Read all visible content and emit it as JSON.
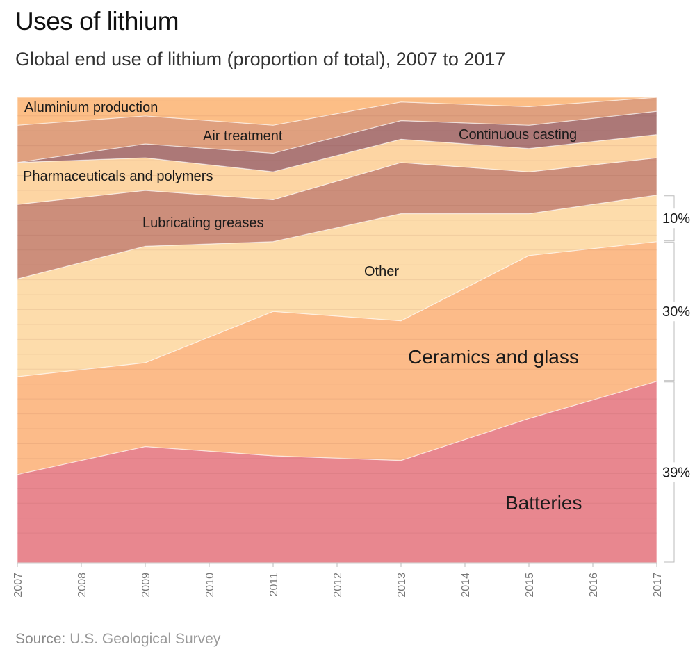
{
  "title": "Uses of lithium",
  "subtitle": "Global end use of lithium (proportion of total), 2007 to 2017",
  "source_label": "Source:",
  "source_text": "U.S. Geological Survey",
  "chart_data": {
    "type": "area",
    "stacked": true,
    "normalized": true,
    "title": "Uses of lithium",
    "subtitle": "Global end use of lithium (proportion of total), 2007 to 2017",
    "x": [
      2007,
      2009,
      2011,
      2013,
      2015,
      2017
    ],
    "x_ticks": [
      "2007",
      "2008",
      "2009",
      "2010",
      "2011",
      "2012",
      "2013",
      "2014",
      "2015",
      "2016",
      "2017"
    ],
    "ylim": [
      0,
      100
    ],
    "grid": true,
    "series": [
      {
        "name": "Batteries",
        "label": "Batteries",
        "color": "#e8878f",
        "values": [
          19,
          25,
          23,
          22,
          31,
          39
        ]
      },
      {
        "name": "Ceramics and glass",
        "label": "Ceramics and glass",
        "color": "#fcbb89",
        "values": [
          21,
          18,
          31,
          30,
          35,
          30
        ]
      },
      {
        "name": "Other",
        "label": "Other",
        "color": "#fddcab",
        "values": [
          21,
          25,
          15,
          23,
          9,
          10
        ]
      },
      {
        "name": "Lubricating greases",
        "label": "Lubricating greases",
        "color": "#cc8e7b",
        "values": [
          16,
          12,
          9,
          11,
          9,
          8
        ]
      },
      {
        "name": "Pharmaceuticals and polymers",
        "label": "Pharmaceuticals and polymers",
        "color": "#fdd5a3",
        "values": [
          9,
          7,
          6,
          5,
          5,
          5
        ]
      },
      {
        "name": "Air treatment",
        "label": "Air treatment",
        "color": "#ac7877",
        "values": [
          0,
          3,
          4,
          4,
          5,
          5
        ]
      },
      {
        "name": "Continuous casting",
        "label": "Continuous casting",
        "color": "#dfa07f",
        "values": [
          8,
          6,
          6,
          4,
          4,
          3
        ]
      },
      {
        "name": "Aluminium production",
        "label": "Aluminium production",
        "color": "#fcbe86",
        "values": [
          6,
          4,
          6,
          1,
          2,
          0
        ]
      }
    ],
    "end_labels": [
      {
        "series": "Batteries",
        "text": "39%"
      },
      {
        "series": "Ceramics and glass",
        "text": "30%"
      },
      {
        "series": "Other",
        "text": "10%"
      }
    ],
    "annotations": [
      {
        "text": "Aluminium production",
        "series": "Aluminium production"
      },
      {
        "text": "Air treatment",
        "series": "Air treatment"
      },
      {
        "text": "Continuous casting",
        "series": "Continuous casting"
      },
      {
        "text": "Pharmaceuticals and polymers",
        "series": "Pharmaceuticals and polymers"
      },
      {
        "text": "Lubricating greases",
        "series": "Lubricating greases"
      },
      {
        "text": "Other",
        "series": "Other"
      },
      {
        "text": "Ceramics and glass",
        "series": "Ceramics and glass"
      },
      {
        "text": "Batteries",
        "series": "Batteries"
      }
    ]
  }
}
